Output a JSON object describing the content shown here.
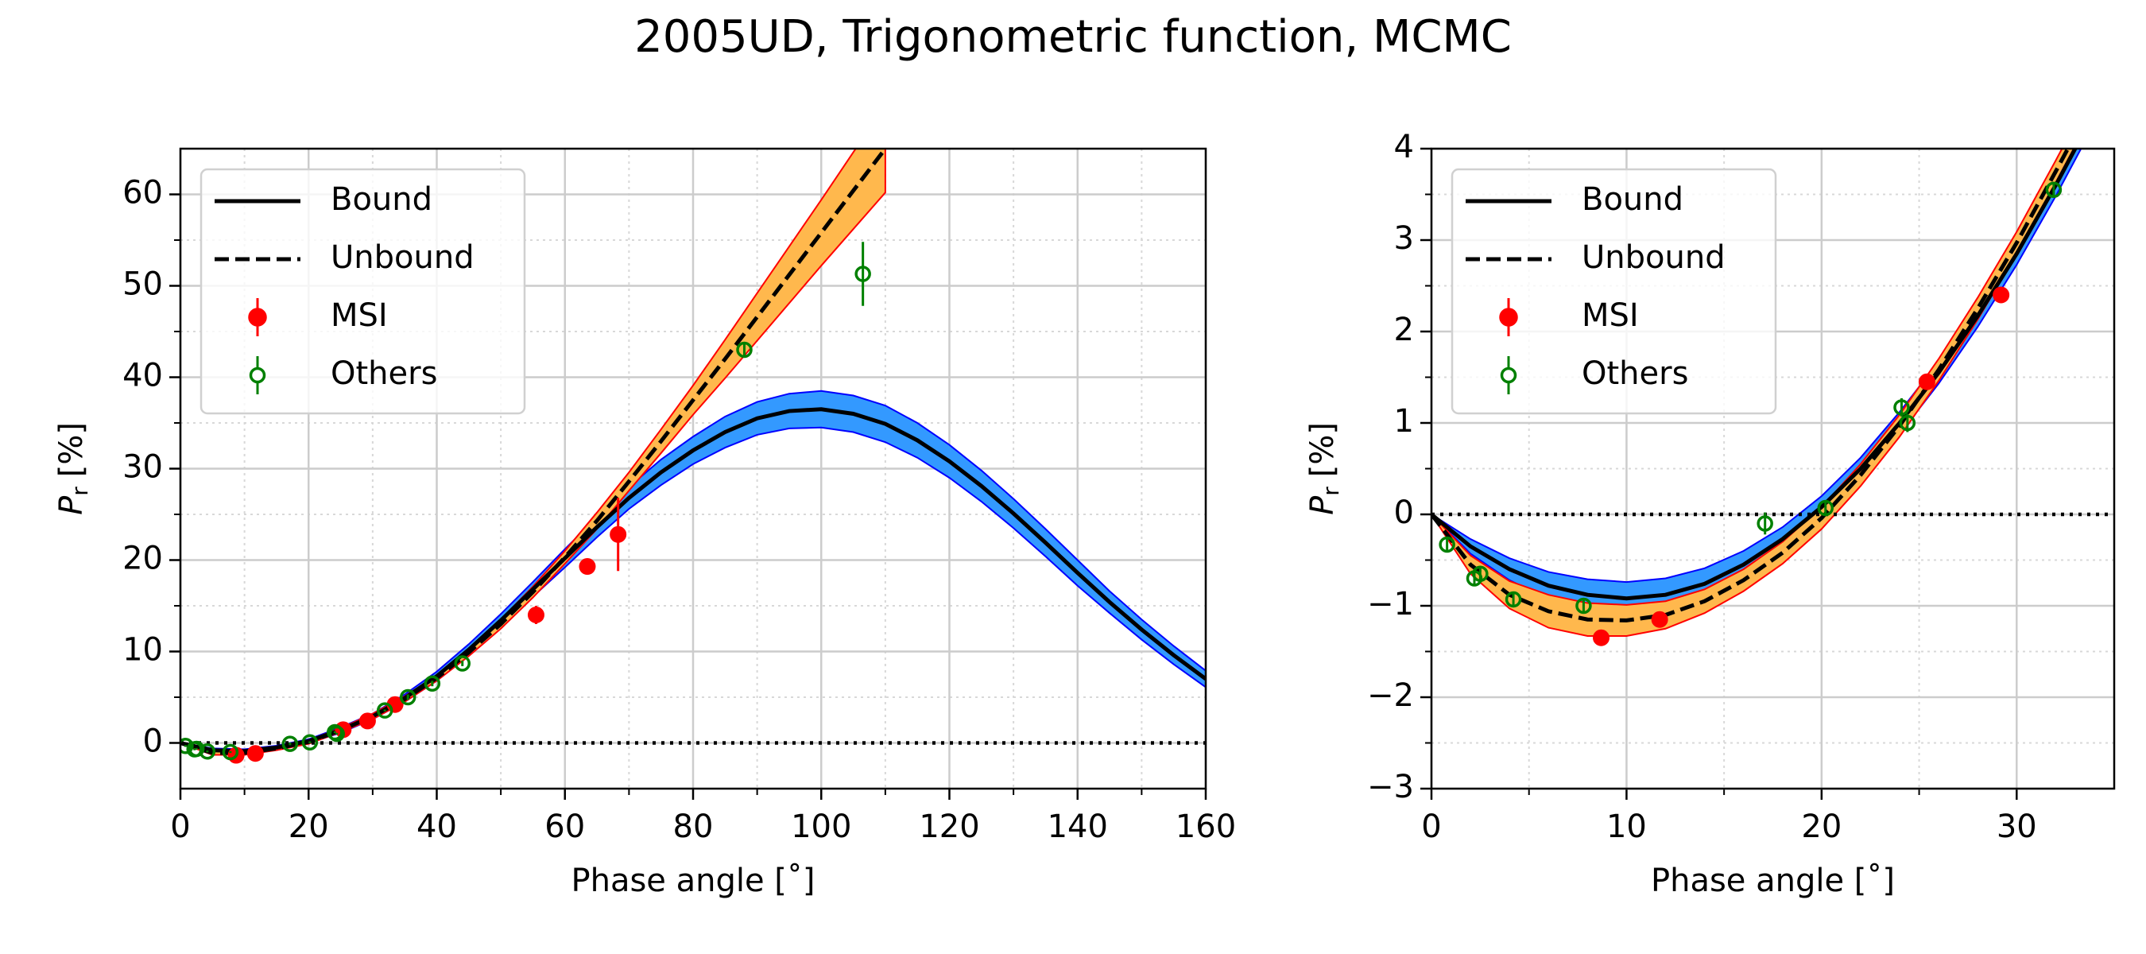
{
  "title": "2005UD, Trigonometric function, MCMC",
  "chart_data": [
    {
      "type": "line",
      "xlabel": "Phase angle [˚]",
      "ylabel": {
        "symbol": "P",
        "subscript": "r",
        "unit": "[%]"
      },
      "xlim": [
        0,
        160
      ],
      "xticks": [
        0,
        20,
        40,
        60,
        80,
        100,
        120,
        140,
        160
      ],
      "xminor": [
        10,
        30,
        50,
        70,
        90,
        110,
        130,
        150
      ],
      "ylim": [
        -5,
        65
      ],
      "yticks": [
        0,
        10,
        20,
        30,
        40,
        50,
        60
      ],
      "yminor": [
        5,
        15,
        25,
        35,
        45,
        55
      ],
      "grid": true,
      "hline": 0,
      "legend": "upper left",
      "series": [
        {
          "name": "Bound",
          "kind": "line",
          "color": "#000000",
          "dash": "solid",
          "band_color": "#3399ff",
          "band_edge": "#0000ff",
          "x": [
            0,
            5,
            10,
            15,
            20,
            25,
            30,
            35,
            40,
            45,
            50,
            55,
            60,
            65,
            70,
            75,
            80,
            85,
            90,
            95,
            100,
            105,
            110,
            115,
            120,
            125,
            130,
            135,
            140,
            145,
            150,
            155,
            160
          ],
          "values": [
            0,
            -0.8,
            -0.9,
            -0.5,
            0.2,
            1.4,
            2.9,
            4.9,
            7.3,
            10.2,
            13.4,
            16.8,
            20.2,
            23.6,
            26.8,
            29.6,
            32.0,
            34.0,
            35.5,
            36.3,
            36.5,
            36.0,
            34.9,
            33.1,
            30.8,
            28.1,
            25.1,
            21.9,
            18.6,
            15.4,
            12.4,
            9.6,
            7.0
          ],
          "lower": [
            0,
            -1.0,
            -1.1,
            -0.7,
            0.0,
            1.1,
            2.6,
            4.5,
            6.8,
            9.6,
            12.7,
            16.0,
            19.2,
            22.5,
            25.6,
            28.2,
            30.5,
            32.3,
            33.7,
            34.4,
            34.5,
            34.0,
            32.9,
            31.2,
            29.0,
            26.4,
            23.5,
            20.4,
            17.2,
            14.2,
            11.3,
            8.6,
            6.1
          ],
          "upper": [
            0,
            -0.6,
            -0.7,
            -0.3,
            0.4,
            1.7,
            3.2,
            5.3,
            7.8,
            10.8,
            14.1,
            17.6,
            21.2,
            24.7,
            28.0,
            31.0,
            33.5,
            35.7,
            37.3,
            38.2,
            38.5,
            38.0,
            36.9,
            35.0,
            32.6,
            29.8,
            26.7,
            23.4,
            20.0,
            16.6,
            13.5,
            10.6,
            7.9
          ]
        },
        {
          "name": "Unbound",
          "kind": "line",
          "color": "#000000",
          "dash": "dashed",
          "band_color": "#ffb84d",
          "band_edge": "#ff0000",
          "x": [
            0,
            5,
            10,
            15,
            20,
            25,
            30,
            35,
            40,
            45,
            50,
            55,
            60,
            65,
            70,
            75,
            80,
            85,
            90,
            95,
            100,
            105,
            110
          ],
          "values": [
            0,
            -1.1,
            -1.1,
            -0.6,
            0.1,
            1.4,
            2.9,
            4.8,
            7.1,
            9.9,
            13.0,
            16.5,
            20.3,
            24.3,
            28.6,
            33.0,
            37.5,
            42.0,
            46.6,
            51.2,
            55.8,
            60.4,
            65.0
          ],
          "lower": [
            0,
            -1.3,
            -1.3,
            -0.8,
            -0.1,
            1.2,
            2.6,
            4.5,
            6.8,
            9.5,
            12.5,
            15.9,
            19.6,
            23.4,
            27.6,
            31.7,
            35.9,
            39.9,
            44.0,
            48.1,
            52.2,
            56.2,
            60.2
          ],
          "upper": [
            0,
            -0.9,
            -0.9,
            -0.4,
            0.3,
            1.6,
            3.2,
            5.1,
            7.4,
            10.3,
            13.5,
            17.1,
            21.0,
            25.2,
            29.6,
            34.3,
            39.1,
            44.1,
            49.2,
            54.3,
            59.4,
            64.6,
            69.8
          ]
        },
        {
          "name": "MSI",
          "kind": "errorbar",
          "marker": "filled",
          "color": "#ff0000",
          "x": [
            8.7,
            11.7,
            25.4,
            29.2,
            33.5,
            55.5,
            63.5,
            68.3
          ],
          "values": [
            -1.35,
            -1.15,
            1.45,
            2.4,
            4.2,
            14.0,
            19.3,
            22.8
          ],
          "errors": [
            0.1,
            0.1,
            0.1,
            0.1,
            0.2,
            1.0,
            0.5,
            4.0
          ]
        },
        {
          "name": "Others",
          "kind": "errorbar",
          "marker": "open",
          "color": "#008000",
          "x": [
            0.8,
            2.2,
            2.5,
            4.2,
            7.8,
            17.1,
            20.2,
            24.1,
            24.4,
            31.9,
            35.5,
            39.3,
            44.0,
            88.0,
            106.5
          ],
          "values": [
            -0.33,
            -0.7,
            -0.65,
            -0.93,
            -1.0,
            -0.1,
            0.07,
            1.17,
            1.0,
            3.55,
            5.0,
            6.5,
            8.7,
            43.0,
            51.3
          ],
          "errors": [
            0.1,
            0.1,
            0.1,
            0.1,
            0.1,
            0.15,
            0.1,
            0.1,
            0.1,
            0.1,
            0.3,
            0.3,
            0.3,
            0.8,
            3.5
          ]
        }
      ]
    },
    {
      "type": "line",
      "xlabel": "Phase angle [˚]",
      "ylabel": {
        "symbol": "P",
        "subscript": "r",
        "unit": "[%]"
      },
      "xlim": [
        0,
        35
      ],
      "xticks": [
        0,
        10,
        20,
        30
      ],
      "xminor": [
        5,
        15,
        25
      ],
      "ylim": [
        -3,
        4
      ],
      "yticks": [
        {
          "value": -3,
          "label": "−3"
        },
        {
          "value": -2,
          "label": "−2"
        },
        {
          "value": -1,
          "label": "−1"
        },
        0,
        1,
        2,
        3,
        4
      ],
      "yminor": [
        -2.5,
        -1.5,
        -0.5,
        0.5,
        1.5,
        2.5,
        3.5
      ],
      "grid": true,
      "hline": 0,
      "legend": "upper left",
      "series": [
        {
          "name": "Bound",
          "kind": "line",
          "color": "#000000",
          "dash": "solid",
          "band_color": "#3399ff",
          "band_edge": "#0000ff",
          "x": [
            0,
            2,
            4,
            6,
            8,
            10,
            12,
            14,
            16,
            18,
            20,
            22,
            24,
            26,
            28,
            30,
            32,
            34
          ],
          "values": [
            0,
            -0.35,
            -0.6,
            -0.78,
            -0.88,
            -0.92,
            -0.88,
            -0.76,
            -0.55,
            -0.27,
            0.08,
            0.5,
            1.0,
            1.55,
            2.17,
            2.85,
            3.6,
            4.4
          ],
          "lower": [
            0,
            -0.43,
            -0.72,
            -0.93,
            -1.05,
            -1.1,
            -1.06,
            -0.93,
            -0.7,
            -0.4,
            -0.04,
            0.38,
            0.88,
            1.43,
            2.05,
            2.73,
            3.48,
            4.28
          ],
          "upper": [
            0,
            -0.27,
            -0.48,
            -0.63,
            -0.71,
            -0.74,
            -0.7,
            -0.59,
            -0.4,
            -0.14,
            0.2,
            0.62,
            1.12,
            1.67,
            2.29,
            2.97,
            3.72,
            4.52
          ]
        },
        {
          "name": "Unbound",
          "kind": "line",
          "color": "#000000",
          "dash": "dashed",
          "band_color": "#ffb84d",
          "band_edge": "#ff0000",
          "x": [
            0,
            2,
            4,
            6,
            8,
            10,
            12,
            14,
            16,
            18,
            20,
            22,
            24,
            26,
            28,
            30,
            32,
            34
          ],
          "values": [
            0,
            -0.55,
            -0.88,
            -1.06,
            -1.15,
            -1.16,
            -1.1,
            -0.95,
            -0.72,
            -0.42,
            -0.04,
            0.43,
            0.97,
            1.58,
            2.25,
            2.97,
            3.75,
            4.55
          ],
          "lower": [
            0,
            -0.65,
            -1.03,
            -1.24,
            -1.33,
            -1.33,
            -1.25,
            -1.08,
            -0.84,
            -0.54,
            -0.16,
            0.31,
            0.85,
            1.46,
            2.13,
            2.85,
            3.63,
            4.43
          ],
          "upper": [
            0,
            -0.45,
            -0.73,
            -0.88,
            -0.97,
            -0.99,
            -0.95,
            -0.82,
            -0.6,
            -0.3,
            0.08,
            0.55,
            1.09,
            1.7,
            2.37,
            3.09,
            3.87,
            4.67
          ]
        },
        {
          "name": "MSI",
          "kind": "errorbar",
          "marker": "filled",
          "color": "#ff0000",
          "x": [
            8.7,
            11.7,
            25.4,
            29.2
          ],
          "values": [
            -1.35,
            -1.15,
            1.45,
            2.4
          ],
          "errors": [
            0.05,
            0.05,
            0.05,
            0.05
          ]
        },
        {
          "name": "Others",
          "kind": "errorbar",
          "marker": "open",
          "color": "#008000",
          "x": [
            0.8,
            2.2,
            2.5,
            4.2,
            7.8,
            17.1,
            20.2,
            24.1,
            24.4,
            31.9
          ],
          "values": [
            -0.33,
            -0.7,
            -0.65,
            -0.93,
            -1.0,
            -0.1,
            0.07,
            1.17,
            1.0,
            3.55
          ],
          "errors": [
            0.08,
            0.08,
            0.08,
            0.08,
            0.08,
            0.12,
            0.08,
            0.1,
            0.1,
            0.08
          ]
        }
      ]
    }
  ]
}
